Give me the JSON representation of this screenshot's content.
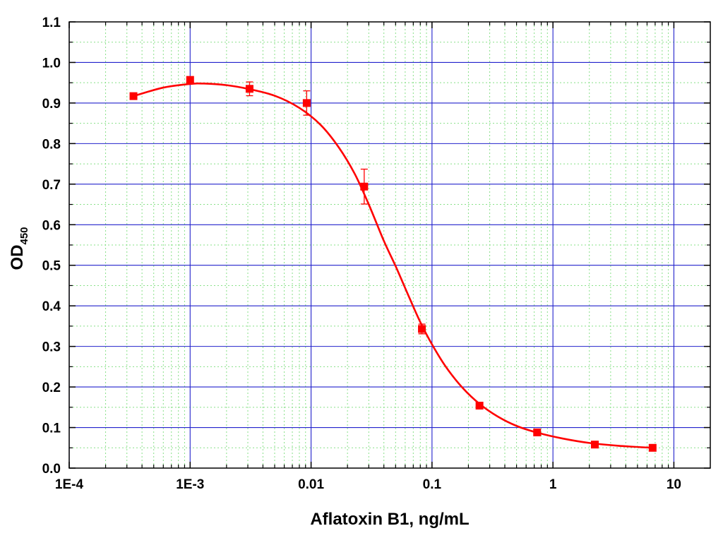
{
  "chart_data": {
    "type": "scatter",
    "title": "",
    "xlabel": "Aflatoxin B1, ng/mL",
    "ylabel": "OD",
    "ylabel_subscript": "450",
    "x_scale": "log",
    "xlim": [
      0.0001,
      20
    ],
    "ylim": [
      0.0,
      1.1
    ],
    "x_ticks": [
      {
        "value": 0.0001,
        "label": "1E-4"
      },
      {
        "value": 0.001,
        "label": "1E-3"
      },
      {
        "value": 0.01,
        "label": "0.01"
      },
      {
        "value": 0.1,
        "label": "0.1"
      },
      {
        "value": 1,
        "label": "1"
      },
      {
        "value": 10,
        "label": "10"
      }
    ],
    "y_ticks": [
      {
        "value": 0.0,
        "label": "0.0"
      },
      {
        "value": 0.1,
        "label": "0.1"
      },
      {
        "value": 0.2,
        "label": "0.2"
      },
      {
        "value": 0.3,
        "label": "0.3"
      },
      {
        "value": 0.4,
        "label": "0.4"
      },
      {
        "value": 0.5,
        "label": "0.5"
      },
      {
        "value": 0.6,
        "label": "0.6"
      },
      {
        "value": 0.7,
        "label": "0.7"
      },
      {
        "value": 0.8,
        "label": "0.8"
      },
      {
        "value": 0.9,
        "label": "0.9"
      },
      {
        "value": 1.0,
        "label": "1.0"
      },
      {
        "value": 1.1,
        "label": "1.1"
      }
    ],
    "grid": true,
    "major_grid_color": "#2222cc",
    "minor_grid_color": "#88e088",
    "legend": "none",
    "series": [
      {
        "marker": "square",
        "color": "#ff0000",
        "points": [
          {
            "x": 0.00034,
            "y": 0.917,
            "err": 0.0
          },
          {
            "x": 0.001,
            "y": 0.957,
            "err": 0.0
          },
          {
            "x": 0.0031,
            "y": 0.935,
            "err": 0.017
          },
          {
            "x": 0.0092,
            "y": 0.9,
            "err": 0.03
          },
          {
            "x": 0.0275,
            "y": 0.694,
            "err": 0.043
          },
          {
            "x": 0.0825,
            "y": 0.343,
            "err": 0.012
          },
          {
            "x": 0.247,
            "y": 0.154,
            "err": 0.0
          },
          {
            "x": 0.74,
            "y": 0.088,
            "err": 0.0
          },
          {
            "x": 2.22,
            "y": 0.058,
            "err": 0.0
          },
          {
            "x": 6.67,
            "y": 0.05,
            "err": 0.0
          }
        ]
      }
    ],
    "fit_curve": {
      "color": "#ff0000",
      "x_range": [
        0.00034,
        6.67
      ],
      "points": [
        {
          "x": 0.00034,
          "y": 0.917
        },
        {
          "x": 0.0006,
          "y": 0.938
        },
        {
          "x": 0.001,
          "y": 0.947
        },
        {
          "x": 0.0013,
          "y": 0.948
        },
        {
          "x": 0.002,
          "y": 0.944
        },
        {
          "x": 0.003,
          "y": 0.935
        },
        {
          "x": 0.005,
          "y": 0.918
        },
        {
          "x": 0.008,
          "y": 0.888
        },
        {
          "x": 0.012,
          "y": 0.846
        },
        {
          "x": 0.017,
          "y": 0.79
        },
        {
          "x": 0.023,
          "y": 0.725
        },
        {
          "x": 0.03,
          "y": 0.65
        },
        {
          "x": 0.04,
          "y": 0.56
        },
        {
          "x": 0.05,
          "y": 0.498
        },
        {
          "x": 0.065,
          "y": 0.42
        },
        {
          "x": 0.08,
          "y": 0.36
        },
        {
          "x": 0.1,
          "y": 0.305
        },
        {
          "x": 0.13,
          "y": 0.25
        },
        {
          "x": 0.18,
          "y": 0.197
        },
        {
          "x": 0.25,
          "y": 0.157
        },
        {
          "x": 0.35,
          "y": 0.127
        },
        {
          "x": 0.5,
          "y": 0.104
        },
        {
          "x": 0.75,
          "y": 0.087
        },
        {
          "x": 1.2,
          "y": 0.073
        },
        {
          "x": 2.0,
          "y": 0.062
        },
        {
          "x": 3.5,
          "y": 0.055
        },
        {
          "x": 6.67,
          "y": 0.05
        }
      ]
    }
  }
}
